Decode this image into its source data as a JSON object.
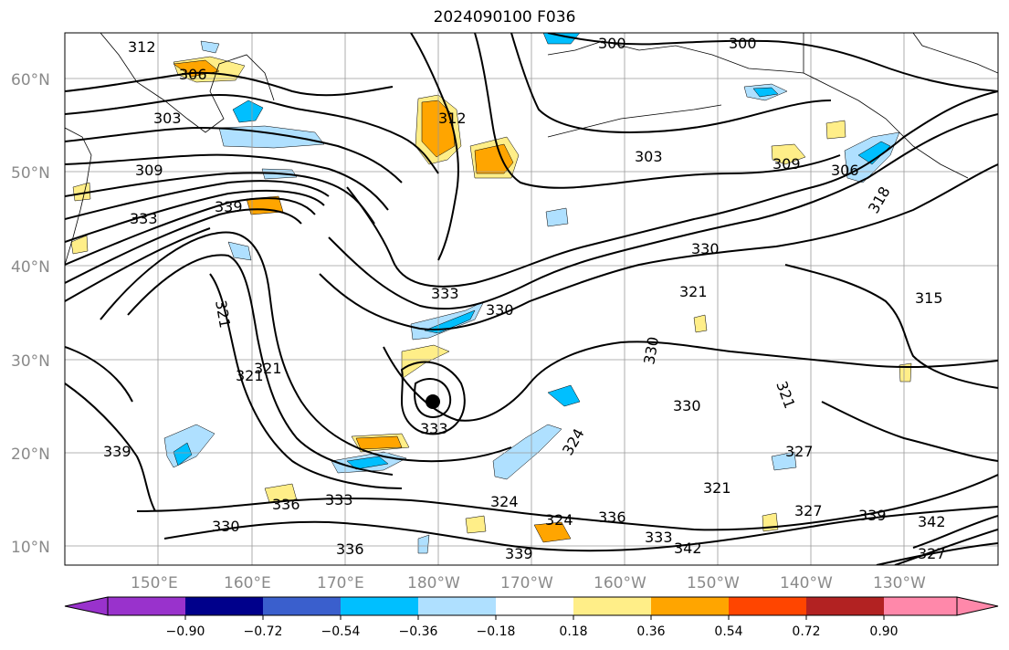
{
  "title": "2024090100 F036",
  "lat_labels": [
    "60°N",
    "50°N",
    "40°N",
    "30°N",
    "20°N",
    "10°N"
  ],
  "lon_labels": [
    "150°E",
    "160°E",
    "170°E",
    "180°W",
    "170°W",
    "160°W",
    "150°W",
    "140°W",
    "130°W"
  ],
  "contour_labels": [
    "312",
    "306",
    "303",
    "309",
    "315",
    "339",
    "333",
    "336",
    "327",
    "321",
    "330",
    "324",
    "318",
    "300",
    "342"
  ],
  "colorbar": {
    "ticks": [
      "−0.90",
      "−0.72",
      "−0.54",
      "−0.36",
      "−0.18",
      "0.18",
      "0.36",
      "0.54",
      "0.72",
      "0.90"
    ],
    "colors": [
      "#9932cc",
      "#00008b",
      "#3a5fcd",
      "#00bfff",
      "#afe0ff",
      "#ffffff",
      "#ffee88",
      "#ffa500",
      "#ff4500",
      "#b22222",
      "#ff88aa"
    ]
  },
  "marker": {
    "label": "storm-center"
  }
}
